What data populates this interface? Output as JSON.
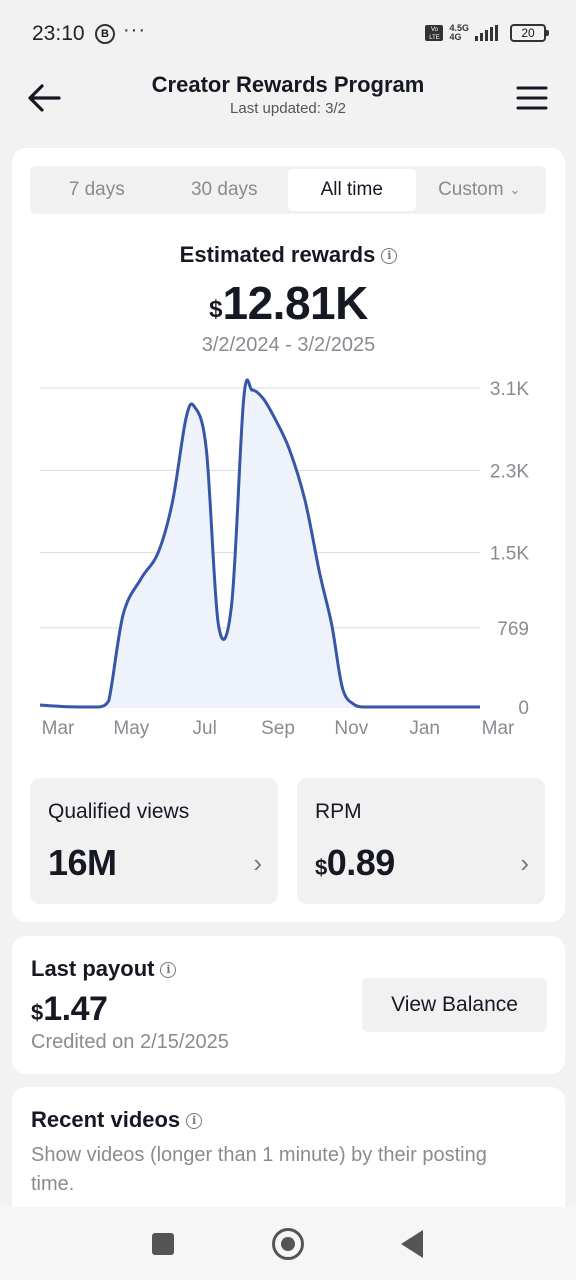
{
  "status_bar": {
    "time": "23:10",
    "b_badge": "B",
    "dots": "···",
    "volte": "Vo LTE",
    "network": "4.5G",
    "network_sub": "4G",
    "battery": "20"
  },
  "header": {
    "title": "Creator Rewards Program",
    "subtitle": "Last updated: 3/2",
    "back_icon": "arrow-left-icon",
    "menu_icon": "hamburger-menu-icon"
  },
  "tabs": [
    {
      "label": "7 days",
      "active": false
    },
    {
      "label": "30 days",
      "active": false
    },
    {
      "label": "All time",
      "active": true
    },
    {
      "label": "Custom",
      "active": false
    }
  ],
  "estimated": {
    "label": "Estimated rewards",
    "currency": "$",
    "value": "12.81K",
    "range": "3/2/2024 - 3/2/2025"
  },
  "chart_data": {
    "type": "area",
    "x_tick_labels": [
      "Mar",
      "May",
      "Jul",
      "Sep",
      "Nov",
      "Jan",
      "Mar"
    ],
    "y_tick_labels": [
      "3.1K",
      "2.3K",
      "1.5K",
      "769",
      "0"
    ],
    "y_ticks": [
      3100,
      2300,
      1500,
      769,
      0
    ],
    "ylim": [
      0,
      3100
    ],
    "grid": true,
    "line_color": "#3656a8",
    "fill_color": "#eef2fa",
    "series": [
      {
        "x": [
          "2024-03-02",
          "2024-03-20",
          "2024-04-10",
          "2024-04-20",
          "2024-04-28",
          "2024-05-10",
          "2024-05-25",
          "2024-06-08",
          "2024-06-20",
          "2024-07-01",
          "2024-07-08",
          "2024-07-18",
          "2024-07-28",
          "2024-08-08",
          "2024-08-18",
          "2024-08-25",
          "2024-09-03",
          "2024-09-13",
          "2024-09-25",
          "2024-10-08",
          "2024-10-20",
          "2024-10-30",
          "2024-11-08",
          "2024-11-18",
          "2024-11-25",
          "2024-12-05",
          "2024-12-20",
          "2025-01-10",
          "2025-02-01",
          "2025-03-02"
        ],
        "values": [
          20,
          5,
          0,
          0,
          60,
          900,
          1250,
          1500,
          2000,
          2800,
          2920,
          2500,
          800,
          1000,
          3000,
          3080,
          3000,
          2800,
          2500,
          2000,
          1300,
          800,
          180,
          20,
          0,
          0,
          0,
          0,
          0,
          0
        ]
      }
    ]
  },
  "stats": {
    "views": {
      "label": "Qualified views",
      "value": "16M"
    },
    "rpm": {
      "label": "RPM",
      "currency": "$",
      "value": "0.89"
    }
  },
  "payout": {
    "label": "Last payout",
    "currency": "$",
    "value": "1.47",
    "date": "Credited on 2/15/2025",
    "button": "View Balance"
  },
  "recent": {
    "label": "Recent videos",
    "description": "Show videos (longer than 1 minute) by their posting time."
  },
  "nav": {
    "recents_icon": "square-icon",
    "home_icon": "circle-home-icon",
    "back_icon": "triangle-back-icon"
  }
}
